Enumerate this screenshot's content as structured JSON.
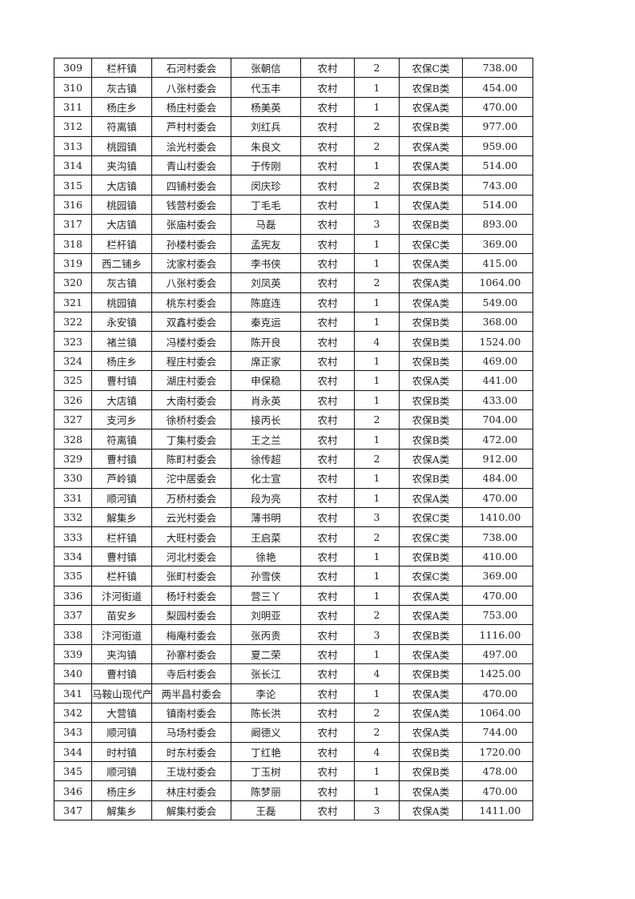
{
  "rows": [
    [
      "309",
      "栏杆镇",
      "石河村委会",
      "张朝信",
      "农村",
      "2",
      "农保C类",
      "738.00"
    ],
    [
      "310",
      "灰古镇",
      "八张村委会",
      "代玉丰",
      "农村",
      "1",
      "农保B类",
      "454.00"
    ],
    [
      "311",
      "杨庄乡",
      "杨庄村委会",
      "杨美英",
      "农村",
      "1",
      "农保A类",
      "470.00"
    ],
    [
      "312",
      "符离镇",
      "芦村村委会",
      "刘红兵",
      "农村",
      "2",
      "农保B类",
      "977.00"
    ],
    [
      "313",
      "桃园镇",
      "浍光村委会",
      "朱良文",
      "农村",
      "2",
      "农保A类",
      "959.00"
    ],
    [
      "314",
      "夹沟镇",
      "青山村委会",
      "于传刚",
      "农村",
      "1",
      "农保A类",
      "514.00"
    ],
    [
      "315",
      "大店镇",
      "四铺村委会",
      "闵庆珍",
      "农村",
      "2",
      "农保B类",
      "743.00"
    ],
    [
      "316",
      "桃园镇",
      "钱营村委会",
      "丁毛毛",
      "农村",
      "1",
      "农保A类",
      "514.00"
    ],
    [
      "317",
      "大店镇",
      "张庙村委会",
      "马磊",
      "农村",
      "3",
      "农保B类",
      "893.00"
    ],
    [
      "318",
      "栏杆镇",
      "孙楼村委会",
      "孟宪友",
      "农村",
      "1",
      "农保C类",
      "369.00"
    ],
    [
      "319",
      "西二铺乡",
      "沈家村委会",
      "李书侠",
      "农村",
      "1",
      "农保A类",
      "415.00"
    ],
    [
      "320",
      "灰古镇",
      "八张村委会",
      "刘凤英",
      "农村",
      "2",
      "农保A类",
      "1064.00"
    ],
    [
      "321",
      "桃园镇",
      "桃东村委会",
      "陈庭连",
      "农村",
      "1",
      "农保A类",
      "549.00"
    ],
    [
      "322",
      "永安镇",
      "双鑫村委会",
      "秦克运",
      "农村",
      "1",
      "农保B类",
      "368.00"
    ],
    [
      "323",
      "褚兰镇",
      "冯楼村委会",
      "陈开良",
      "农村",
      "4",
      "农保B类",
      "1524.00"
    ],
    [
      "324",
      "杨庄乡",
      "程庄村委会",
      "席正家",
      "农村",
      "1",
      "农保B类",
      "469.00"
    ],
    [
      "325",
      "曹村镇",
      "湖庄村委会",
      "申保稳",
      "农村",
      "1",
      "农保A类",
      "441.00"
    ],
    [
      "326",
      "大店镇",
      "大南村委会",
      "肖永英",
      "农村",
      "1",
      "农保B类",
      "433.00"
    ],
    [
      "327",
      "支河乡",
      "徐桥村委会",
      "接丙长",
      "农村",
      "2",
      "农保B类",
      "704.00"
    ],
    [
      "328",
      "符离镇",
      "丁集村委会",
      "王之兰",
      "农村",
      "1",
      "农保B类",
      "472.00"
    ],
    [
      "329",
      "曹村镇",
      "陈町村委会",
      "徐传超",
      "农村",
      "2",
      "农保A类",
      "912.00"
    ],
    [
      "330",
      "芦岭镇",
      "沱中居委会",
      "化士宣",
      "农村",
      "1",
      "农保B类",
      "484.00"
    ],
    [
      "331",
      "顺河镇",
      "万桥村委会",
      "段为亮",
      "农村",
      "1",
      "农保A类",
      "470.00"
    ],
    [
      "332",
      "解集乡",
      "云光村委会",
      "薄书明",
      "农村",
      "3",
      "农保C类",
      "1410.00"
    ],
    [
      "333",
      "栏杆镇",
      "大旺村委会",
      "王启菜",
      "农村",
      "2",
      "农保C类",
      "738.00"
    ],
    [
      "334",
      "曹村镇",
      "河北村委会",
      "徐艳",
      "农村",
      "1",
      "农保B类",
      "410.00"
    ],
    [
      "335",
      "栏杆镇",
      "张町村委会",
      "孙雪侠",
      "农村",
      "1",
      "农保C类",
      "369.00"
    ],
    [
      "336",
      "汴河街道",
      "杨圩村委会",
      "营三丫",
      "农村",
      "1",
      "农保A类",
      "470.00"
    ],
    [
      "337",
      "苗安乡",
      "梨园村委会",
      "刘明亚",
      "农村",
      "2",
      "农保A类",
      "753.00"
    ],
    [
      "338",
      "汴河街道",
      "梅庵村委会",
      "张丙贵",
      "农村",
      "3",
      "农保B类",
      "1116.00"
    ],
    [
      "339",
      "夹沟镇",
      "孙寨村委会",
      "夏二荣",
      "农村",
      "1",
      "农保A类",
      "497.00"
    ],
    [
      "340",
      "曹村镇",
      "寺后村委会",
      "张长江",
      "农村",
      "4",
      "农保B类",
      "1425.00"
    ],
    [
      "341",
      "马鞍山现代产业园",
      "两半昌村委会",
      "李论",
      "农村",
      "1",
      "农保A类",
      "470.00"
    ],
    [
      "342",
      "大营镇",
      "镇南村委会",
      "陈长洪",
      "农村",
      "2",
      "农保A类",
      "1064.00"
    ],
    [
      "343",
      "顺河镇",
      "马场村委会",
      "阚德义",
      "农村",
      "2",
      "农保A类",
      "744.00"
    ],
    [
      "344",
      "时村镇",
      "时东村委会",
      "丁红艳",
      "农村",
      "4",
      "农保B类",
      "1720.00"
    ],
    [
      "345",
      "顺河镇",
      "王垅村委会",
      "丁玉树",
      "农村",
      "1",
      "农保B类",
      "478.00"
    ],
    [
      "346",
      "杨庄乡",
      "林庄村委会",
      "陈梦丽",
      "农村",
      "1",
      "农保A类",
      "470.00"
    ],
    [
      "347",
      "解集乡",
      "解集村委会",
      "王磊",
      "农村",
      "3",
      "农保A类",
      "1411.00"
    ]
  ]
}
